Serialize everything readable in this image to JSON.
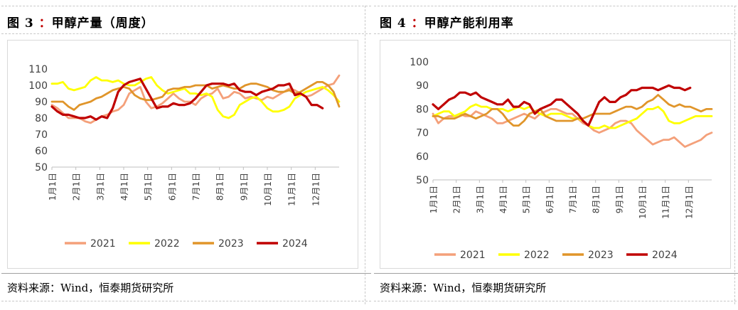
{
  "panels": [
    {
      "title_prefix": "图 3",
      "title_colon": "：",
      "title_text": "甲醇产量（周度）",
      "source": "资料来源：Wind，恒泰期货研究所"
    },
    {
      "title_prefix": "图 4",
      "title_colon": "：",
      "title_text": "甲醇产能利用率",
      "source": "资料来源：Wind，恒泰期货研究所"
    }
  ],
  "chart_data": [
    {
      "type": "line",
      "title": "甲醇产量（周度）",
      "ylim": [
        50,
        110
      ],
      "yticks": [
        50,
        60,
        70,
        80,
        90,
        100,
        110
      ],
      "xlabels": [
        "1月1日",
        "2月1日",
        "3月1日",
        "4月1日",
        "5月1日",
        "6月1日",
        "7月1日",
        "8月1日",
        "9月1日",
        "10月1日",
        "11月1日",
        "12月1日"
      ],
      "weeks": 53,
      "grid": false,
      "legend": "bottom",
      "series": [
        {
          "name": "2021",
          "color": "#f4a07a",
          "values": [
            88,
            86,
            83,
            80,
            80,
            80,
            78,
            77,
            79,
            81,
            82,
            84,
            85,
            88,
            95,
            97,
            99,
            90,
            86,
            87,
            89,
            92,
            95,
            92,
            90,
            90,
            88,
            92,
            94,
            95,
            98,
            92,
            93,
            96,
            95,
            92,
            93,
            92,
            91,
            93,
            92,
            94,
            96,
            98,
            97,
            95,
            93,
            94,
            96,
            98,
            100,
            101,
            106
          ]
        },
        {
          "name": "2022",
          "color": "#ffff00",
          "values": [
            101,
            101,
            102,
            98,
            97,
            98,
            99,
            103,
            105,
            103,
            103,
            102,
            103,
            101,
            100,
            100,
            102,
            104,
            105,
            100,
            97,
            95,
            96,
            97,
            98,
            95,
            95,
            94,
            95,
            93,
            85,
            81,
            80,
            82,
            88,
            90,
            92,
            93,
            90,
            86,
            84,
            84,
            85,
            87,
            92,
            94,
            96,
            97,
            98,
            99,
            97,
            94,
            90
          ]
        },
        {
          "name": "2023",
          "color": "#e0952a",
          "values": [
            90,
            90,
            90,
            87,
            85,
            88,
            89,
            90,
            92,
            93,
            95,
            97,
            98,
            99,
            98,
            94,
            92,
            91,
            91,
            92,
            93,
            97,
            98,
            98,
            99,
            99,
            100,
            100,
            100,
            98,
            99,
            100,
            99,
            98,
            98,
            100,
            101,
            101,
            100,
            99,
            97,
            96,
            96,
            97,
            95,
            96,
            98,
            100,
            102,
            102,
            100,
            96,
            87
          ]
        },
        {
          "name": "2024",
          "color": "#c00000",
          "values": [
            87,
            84,
            82,
            82,
            81,
            80,
            80,
            81,
            79,
            81,
            80,
            86,
            96,
            100,
            102,
            103,
            104,
            98,
            92,
            86,
            87,
            87,
            89,
            88,
            88,
            89,
            92,
            96,
            100,
            101,
            101,
            101,
            100,
            101,
            97,
            96,
            96,
            94,
            96,
            97,
            98,
            100,
            100,
            101,
            94,
            95,
            93,
            88,
            88,
            86
          ]
        }
      ]
    },
    {
      "type": "line",
      "title": "甲醇产能利用率",
      "ylim": [
        50,
        100
      ],
      "yticks": [
        50,
        60,
        70,
        80,
        90,
        100
      ],
      "xlabels": [
        "1月1日",
        "2月1日",
        "3月1日",
        "4月1日",
        "5月1日",
        "6月1日",
        "7月1日",
        "8月1日",
        "9月1日",
        "10月1日",
        "11月1日",
        "12月1日"
      ],
      "weeks": 53,
      "grid": false,
      "legend": "bottom",
      "series": [
        {
          "name": "2021",
          "color": "#f4a07a",
          "values": [
            78,
            74,
            76,
            77,
            77,
            78,
            77,
            77,
            79,
            78,
            77,
            76,
            74,
            74,
            75,
            76,
            77,
            78,
            77,
            76,
            78,
            79,
            80,
            80,
            79,
            78,
            78,
            76,
            74,
            73,
            71,
            70,
            71,
            72,
            74,
            75,
            75,
            74,
            71,
            69,
            67,
            65,
            66,
            67,
            67,
            68,
            66,
            64,
            65,
            66,
            67,
            69,
            70
          ]
        },
        {
          "name": "2022",
          "color": "#ffff00",
          "values": [
            77,
            78,
            79,
            79,
            77,
            78,
            79,
            81,
            82,
            81,
            81,
            80,
            80,
            80,
            79,
            80,
            81,
            80,
            81,
            79,
            78,
            77,
            78,
            78,
            78,
            77,
            76,
            76,
            75,
            73,
            72,
            72,
            73,
            72,
            72,
            73,
            74,
            75,
            76,
            78,
            80,
            80,
            81,
            79,
            75,
            74,
            74,
            75,
            76,
            77,
            77,
            77,
            77
          ]
        },
        {
          "name": "2023",
          "color": "#e0952a",
          "values": [
            77,
            77,
            76,
            76,
            76,
            77,
            78,
            77,
            76,
            77,
            78,
            80,
            80,
            78,
            75,
            73,
            73,
            75,
            78,
            79,
            80,
            77,
            76,
            75,
            75,
            75,
            75,
            76,
            76,
            77,
            78,
            78,
            78,
            78,
            79,
            80,
            81,
            81,
            80,
            81,
            83,
            84,
            86,
            84,
            82,
            81,
            82,
            81,
            81,
            80,
            79,
            80,
            80
          ]
        },
        {
          "name": "2024",
          "color": "#c00000",
          "values": [
            82,
            80,
            82,
            84,
            85,
            87,
            87,
            86,
            87,
            85,
            84,
            83,
            82,
            82,
            84,
            81,
            81,
            83,
            82,
            78,
            80,
            81,
            82,
            84,
            84,
            82,
            80,
            78,
            75,
            73,
            78,
            83,
            85,
            83,
            83,
            85,
            86,
            88,
            88,
            89,
            89,
            89,
            88,
            89,
            90,
            89,
            89,
            88,
            89
          ]
        }
      ]
    }
  ]
}
